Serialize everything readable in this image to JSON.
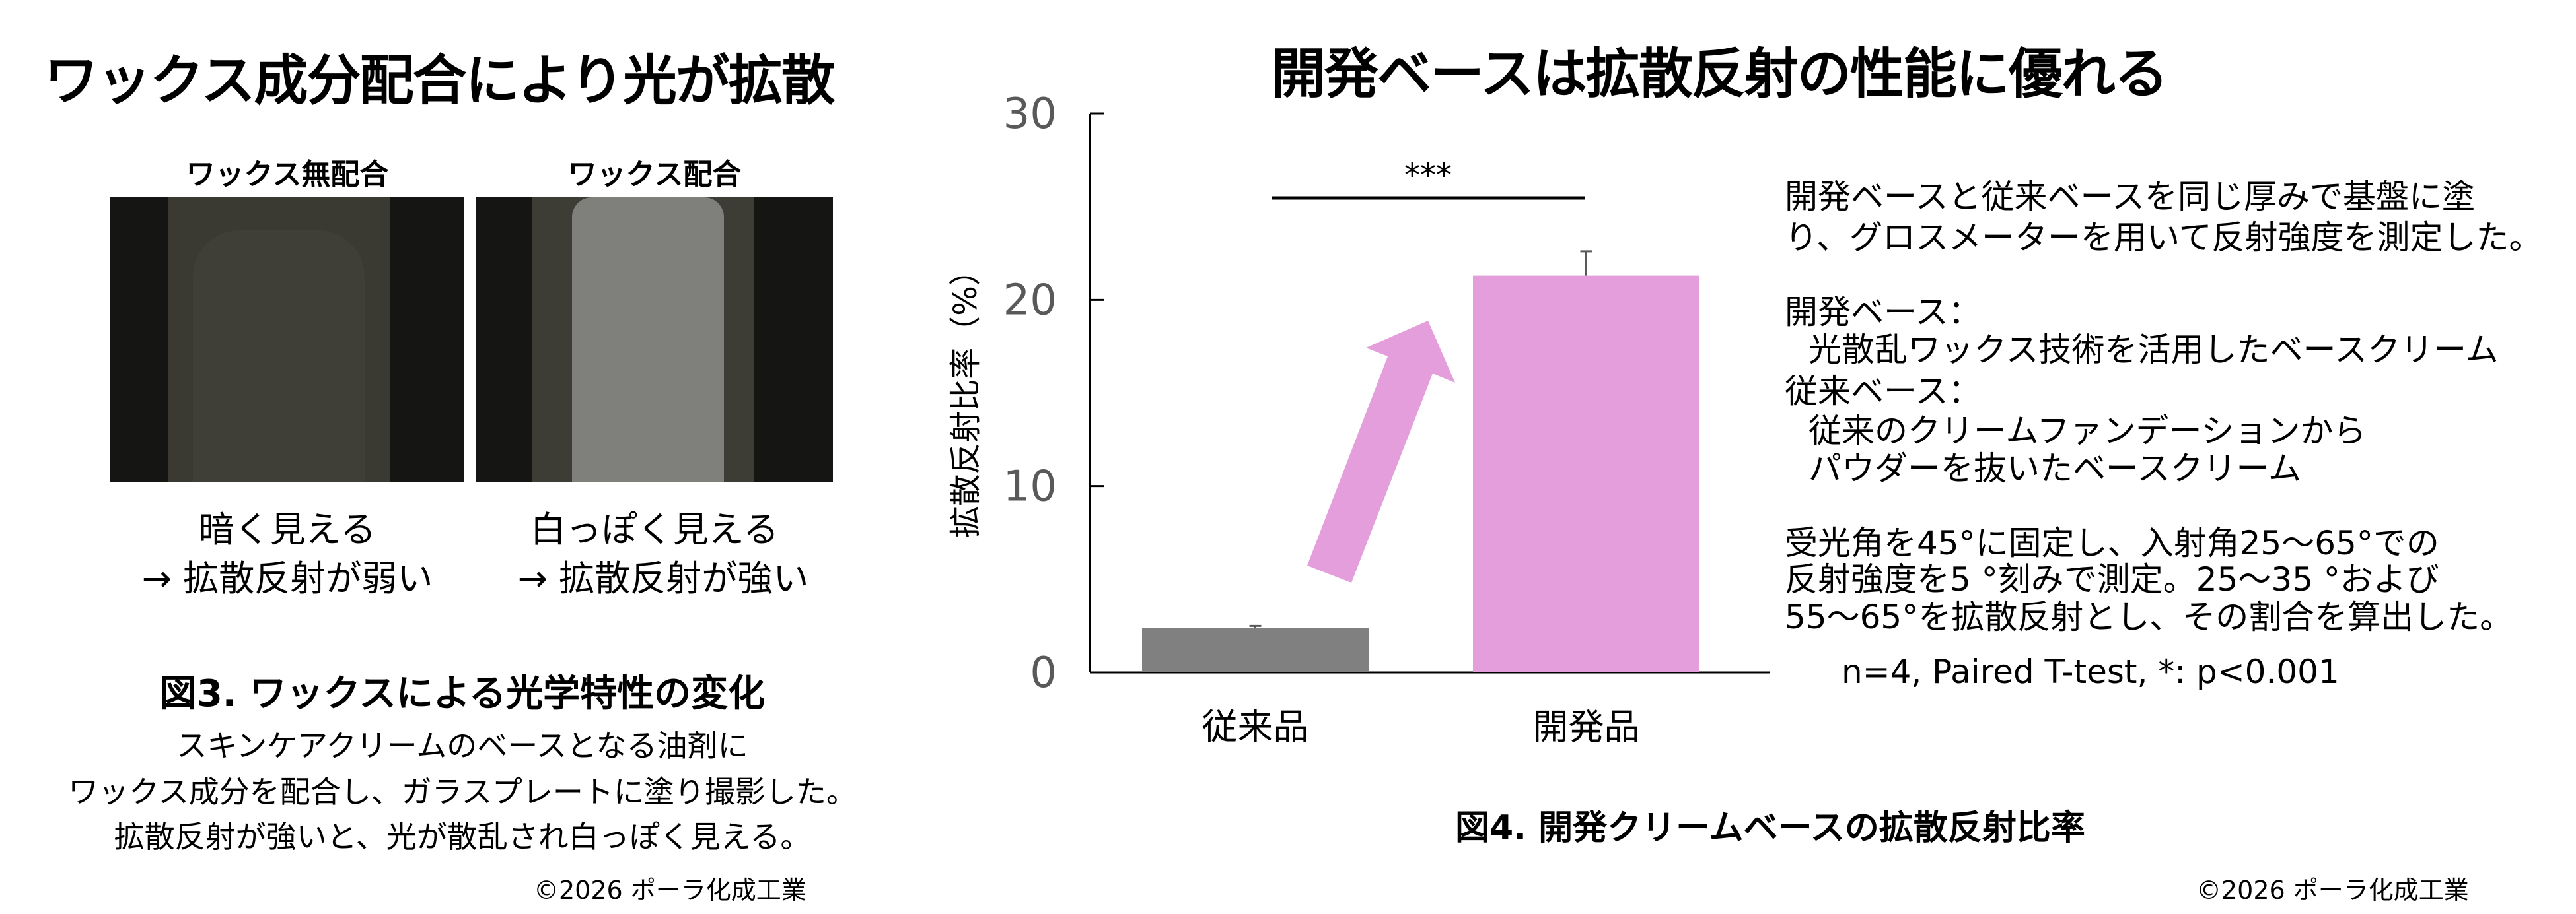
{
  "left": {
    "title": "ワックス成分配合により光が拡散",
    "photos": [
      {
        "label": "ワックス無配合",
        "caption_line1": "暗く見える",
        "caption_line2": "→ 拡散反射が弱い"
      },
      {
        "label": "ワックス配合",
        "caption_line1": "白っぽく見える",
        "caption_line2": "→ 拡散反射が強い"
      }
    ],
    "figure_title": "図3. ワックスによる光学特性の変化",
    "description": [
      "スキンケアクリームのベースとなる油剤に",
      "ワックス成分を配合し、ガラスプレートに塗り撮影した。",
      "拡散反射が強いと、光が散乱され白っぽく見える。"
    ],
    "copyright": "©2026 ポーラ化成工業"
  },
  "right": {
    "title": "開発ベースは拡散反射の性能に優れる",
    "figure_title": "図4.  開発クリームベースの拡散反射比率",
    "notes": [
      "開発ベースと従来ベースを同じ厚みで基盤に塗",
      "り、グロスメーターを用いて反射強度を測定した。",
      "開発ベース：",
      "光散乱ワックス技術を活用したベースクリーム",
      "従来ベース：",
      "従来のクリームファンデーションから",
      "パウダーを抜いたベースクリーム",
      "受光角を45°に固定し、入射角25～65°での",
      "反射強度を5 °刻みで測定。25～35 °および",
      "55～65°を拡散反射とし、その割合を算出した。"
    ],
    "stats": "n=4, Paired T-test, *: p<0.001",
    "copyright": "©2026 ポーラ化成工業"
  },
  "chart_data": {
    "type": "bar",
    "categories": [
      "従来品",
      "開発品"
    ],
    "values": [
      2.4,
      21.3
    ],
    "error_upper": [
      2.5,
      22.6
    ],
    "colors": [
      "#808080",
      "#e39edb"
    ],
    "ylabel": "拡散反射比率（%）",
    "ylim": [
      0,
      30
    ],
    "yticks": [
      "0",
      "10",
      "20",
      "30"
    ],
    "significance": "***",
    "arrow_color": "#e39edb",
    "grid": false
  }
}
